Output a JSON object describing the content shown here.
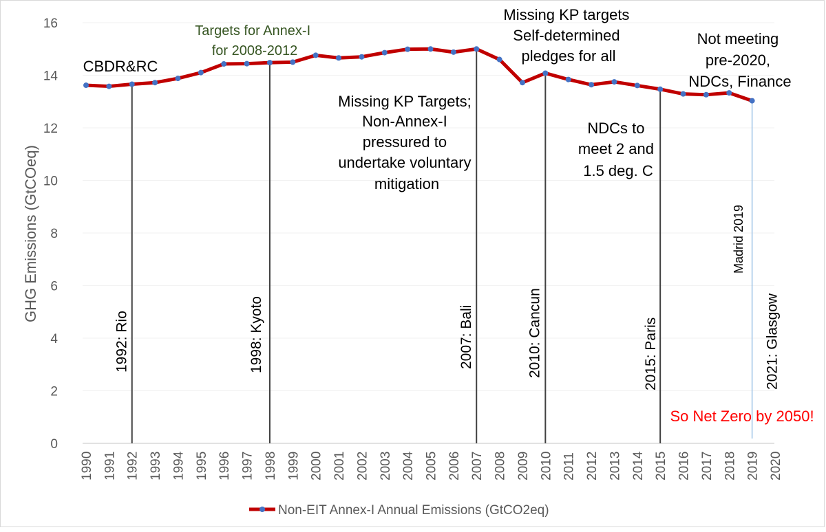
{
  "chart_data": {
    "type": "line",
    "title": "",
    "xlabel": "",
    "ylabel": "GHG Emissions (GtCOeq)",
    "ylim": [
      0,
      16
    ],
    "yticks": [
      0,
      2,
      4,
      6,
      8,
      10,
      12,
      14,
      16
    ],
    "xlim": [
      1990,
      2020
    ],
    "categories": [
      "1990",
      "1991",
      "1992",
      "1993",
      "1994",
      "1995",
      "1996",
      "1997",
      "1998",
      "1999",
      "2000",
      "2001",
      "2002",
      "2003",
      "2004",
      "2005",
      "2006",
      "2007",
      "2008",
      "2009",
      "2010",
      "2011",
      "2012",
      "2013",
      "2014",
      "2015",
      "2016",
      "2017",
      "2018",
      "2019",
      "2020"
    ],
    "series": [
      {
        "name": "Non-EIT Annex-I Annual Emissions (GtCO2eq)",
        "color": "#c00000",
        "marker_color": "#4472c4",
        "x": [
          1990,
          1991,
          1992,
          1993,
          1994,
          1995,
          1996,
          1997,
          1998,
          1999,
          2000,
          2001,
          2002,
          2003,
          2004,
          2005,
          2006,
          2007,
          2008,
          2009,
          2010,
          2011,
          2012,
          2013,
          2014,
          2015,
          2016,
          2017,
          2018,
          2019
        ],
        "values": [
          13.62,
          13.58,
          13.66,
          13.72,
          13.88,
          14.1,
          14.43,
          14.44,
          14.48,
          14.5,
          14.76,
          14.66,
          14.7,
          14.86,
          14.99,
          15.0,
          14.88,
          15.0,
          14.6,
          13.72,
          14.08,
          13.84,
          13.64,
          13.75,
          13.61,
          13.47,
          13.29,
          13.26,
          13.33,
          13.03
        ]
      }
    ],
    "legend": {
      "position": "bottom",
      "label": "Non-EIT Annex-I Annual Emissions (GtCO2eq)"
    },
    "event_lines": [
      {
        "year": 1992,
        "label": "1992: Rio",
        "color": "#404040"
      },
      {
        "year": 1998,
        "label": "1998: Kyoto",
        "color": "#404040"
      },
      {
        "year": 2007,
        "label": "2007: Bali",
        "color": "#404040"
      },
      {
        "year": 2010,
        "label": "2010: Cancun",
        "color": "#404040"
      },
      {
        "year": 2015,
        "label": "2015: Paris",
        "color": "#404040"
      },
      {
        "year": 2019,
        "label": "2021: Glasgow",
        "color": "#9dc3e6"
      }
    ],
    "annotations": [
      {
        "id": "cbdr",
        "lines": [
          "CBDR&RC"
        ],
        "color": "#000000"
      },
      {
        "id": "annex-targets",
        "lines": [
          "Targets for Annex-I",
          "for 2008-2012"
        ],
        "color": "#375623"
      },
      {
        "id": "missing-kp-bali",
        "lines": [
          "Missing KP Targets;",
          "Non-Annex-I",
          "pressured to",
          "undertake voluntary",
          "mitigation"
        ],
        "color": "#000000"
      },
      {
        "id": "missing-kp-cancun",
        "lines": [
          "Missing KP targets",
          "Self-determined",
          "pledges for all"
        ],
        "color": "#000000"
      },
      {
        "id": "ndcs-paris",
        "lines": [
          "NDCs to",
          "meet 2 and",
          "1.5 deg. C"
        ],
        "color": "#000000"
      },
      {
        "id": "not-meeting",
        "lines": [
          "Not meeting",
          "pre-2020,",
          "NDCs, Finance"
        ],
        "color": "#000000"
      },
      {
        "id": "madrid",
        "lines": [
          "Madrid 2019"
        ],
        "color": "#000000"
      },
      {
        "id": "net-zero",
        "lines": [
          "So Net Zero by 2050!"
        ],
        "color": "#ff0000"
      }
    ]
  }
}
